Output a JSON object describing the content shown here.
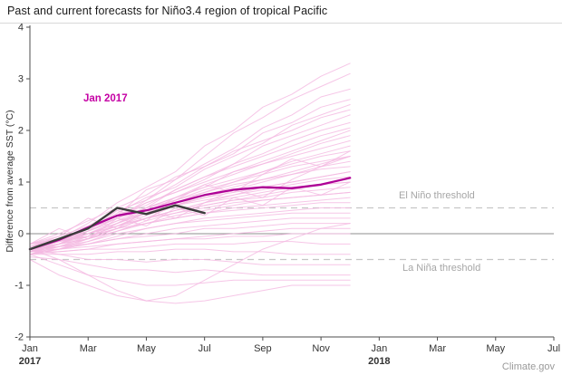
{
  "title": "Past and current forecasts for Niño3.4 region of tropical Pacific",
  "attribution": "Climate.gov",
  "chart_data": {
    "type": "line",
    "title": "Past and current forecasts for Niño3.4 region of tropical Pacific",
    "xlabel": "",
    "ylabel": "Difference from average SST (°C)",
    "ylim": [
      -2,
      4
    ],
    "yticks": [
      -2,
      -1,
      0,
      1,
      2,
      3,
      4
    ],
    "x_domain_months": 18,
    "x_tick_months": [
      0,
      2,
      4,
      6,
      8,
      10,
      12,
      14,
      16,
      18
    ],
    "x_tick_labels": [
      "Jan",
      "Mar",
      "May",
      "Jul",
      "Sep",
      "Nov",
      "Jan",
      "Mar",
      "May",
      "Jul"
    ],
    "x_year_labels": [
      {
        "label": "2017",
        "tick_index": 0
      },
      {
        "label": "2018",
        "tick_index": 6
      }
    ],
    "grid": "off",
    "legend": "none",
    "annotations": {
      "forecast_label": "Jan 2017",
      "elnino": "El Niño threshold",
      "lanina": "La Niña threshold"
    },
    "thresholds": {
      "elnino": 0.5,
      "lanina": -0.5,
      "zero": 0
    },
    "observed": {
      "name": "observed-sst-anomaly",
      "months": [
        0,
        1,
        2,
        3,
        4,
        5,
        6
      ],
      "values": [
        -0.3,
        -0.1,
        0.1,
        0.5,
        0.38,
        0.55,
        0.4
      ]
    },
    "forecast_mean": {
      "name": "jan-2017-forecast-mean",
      "months": [
        0,
        1,
        2,
        3,
        4,
        5,
        6,
        7,
        8,
        9,
        10,
        11
      ],
      "values": [
        -0.3,
        -0.12,
        0.12,
        0.35,
        0.45,
        0.6,
        0.75,
        0.85,
        0.9,
        0.88,
        0.95,
        1.08
      ]
    },
    "ensemble": {
      "months": [
        0,
        1,
        2,
        3,
        4,
        5,
        6,
        7,
        8,
        9,
        10,
        11
      ],
      "members": [
        [
          -0.3,
          -0.1,
          0.2,
          0.6,
          0.9,
          1.2,
          1.7,
          2.0,
          2.45,
          2.7,
          3.05,
          3.3
        ],
        [
          -0.2,
          -0.15,
          0.1,
          0.35,
          0.85,
          1.05,
          1.5,
          1.95,
          2.25,
          2.6,
          2.85,
          3.1
        ],
        [
          -0.3,
          -0.2,
          0.05,
          0.45,
          0.65,
          1.05,
          1.35,
          1.65,
          2.05,
          2.3,
          2.65,
          2.8
        ],
        [
          -0.4,
          -0.2,
          0.1,
          0.3,
          0.65,
          0.95,
          1.3,
          1.55,
          1.95,
          2.15,
          2.45,
          2.6
        ],
        [
          -0.25,
          -0.1,
          0.1,
          0.4,
          0.7,
          0.9,
          1.25,
          1.5,
          1.75,
          2.1,
          2.3,
          2.5
        ],
        [
          -0.2,
          0.0,
          0.25,
          0.5,
          0.75,
          1.1,
          1.3,
          1.6,
          1.8,
          2.0,
          2.25,
          2.4
        ],
        [
          -0.35,
          -0.2,
          0.0,
          0.2,
          0.5,
          0.85,
          1.1,
          1.35,
          1.7,
          1.9,
          2.1,
          2.3
        ],
        [
          -0.3,
          -0.15,
          0.05,
          0.3,
          0.6,
          0.8,
          1.05,
          1.35,
          1.55,
          1.8,
          2.0,
          2.15
        ],
        [
          -0.25,
          -0.1,
          0.1,
          0.35,
          0.55,
          0.85,
          1.1,
          1.3,
          1.5,
          1.7,
          1.9,
          2.05
        ],
        [
          -0.4,
          -0.3,
          -0.1,
          0.2,
          0.4,
          0.7,
          0.9,
          1.2,
          1.4,
          1.6,
          1.8,
          2.0
        ],
        [
          -0.3,
          -0.2,
          0.0,
          0.25,
          0.5,
          0.7,
          0.95,
          1.15,
          1.35,
          1.55,
          1.75,
          1.9
        ],
        [
          -0.2,
          -0.05,
          0.15,
          0.35,
          0.6,
          0.8,
          1.0,
          1.2,
          1.35,
          1.5,
          1.65,
          1.8
        ],
        [
          -0.35,
          -0.25,
          -0.05,
          0.15,
          0.4,
          0.6,
          0.8,
          1.0,
          1.2,
          1.4,
          1.55,
          1.7
        ],
        [
          -0.3,
          -0.1,
          0.05,
          0.3,
          0.5,
          0.7,
          0.9,
          1.05,
          1.2,
          1.35,
          1.5,
          1.6
        ],
        [
          -0.25,
          -0.15,
          0.0,
          0.2,
          0.45,
          0.65,
          0.85,
          1.0,
          1.15,
          1.3,
          1.4,
          1.5
        ],
        [
          -0.4,
          -0.25,
          -0.1,
          0.1,
          0.3,
          0.55,
          0.75,
          0.9,
          1.05,
          1.2,
          1.35,
          1.5
        ],
        [
          -0.3,
          -0.2,
          -0.05,
          0.15,
          0.35,
          0.55,
          0.7,
          0.85,
          1.0,
          1.15,
          1.3,
          1.4
        ],
        [
          -0.2,
          -0.1,
          0.1,
          0.3,
          0.5,
          0.65,
          0.8,
          0.95,
          1.05,
          1.15,
          1.25,
          1.3
        ],
        [
          -0.3,
          -0.15,
          0.0,
          0.2,
          0.4,
          0.55,
          0.7,
          0.8,
          0.9,
          1.0,
          1.1,
          1.2
        ],
        [
          -0.35,
          -0.2,
          -0.1,
          0.1,
          0.3,
          0.45,
          0.6,
          0.75,
          0.9,
          1.0,
          1.1,
          1.2
        ],
        [
          -0.25,
          -0.1,
          0.05,
          0.25,
          0.4,
          0.55,
          0.65,
          0.75,
          0.85,
          0.95,
          1.05,
          1.1
        ],
        [
          -0.3,
          -0.2,
          0.0,
          0.15,
          0.3,
          0.45,
          0.6,
          0.7,
          0.8,
          0.9,
          0.95,
          1.0
        ],
        [
          -0.4,
          -0.3,
          -0.15,
          0.05,
          0.25,
          0.4,
          0.55,
          0.65,
          0.75,
          0.85,
          0.95,
          1.0
        ],
        [
          -0.3,
          -0.15,
          -0.05,
          0.1,
          0.3,
          0.45,
          0.55,
          0.65,
          0.7,
          0.8,
          0.85,
          0.9
        ],
        [
          -0.2,
          -0.1,
          0.0,
          0.15,
          0.3,
          0.4,
          0.5,
          0.6,
          0.65,
          0.7,
          0.75,
          0.8
        ],
        [
          -0.35,
          -0.25,
          -0.1,
          0.05,
          0.2,
          0.35,
          0.45,
          0.55,
          0.65,
          0.7,
          0.75,
          0.8
        ],
        [
          -0.3,
          -0.2,
          -0.1,
          0.05,
          0.2,
          0.3,
          0.4,
          0.5,
          0.55,
          0.6,
          0.65,
          0.7
        ],
        [
          -0.25,
          -0.15,
          -0.05,
          0.1,
          0.2,
          0.3,
          0.4,
          0.45,
          0.5,
          0.55,
          0.6,
          0.6
        ],
        [
          -0.4,
          -0.3,
          -0.2,
          -0.05,
          0.1,
          0.2,
          0.3,
          0.35,
          0.4,
          0.45,
          0.5,
          0.5
        ],
        [
          -0.3,
          -0.25,
          -0.15,
          0.0,
          0.1,
          0.2,
          0.25,
          0.3,
          0.35,
          0.4,
          0.4,
          0.4
        ],
        [
          -0.35,
          -0.3,
          -0.2,
          -0.1,
          0.0,
          0.1,
          0.15,
          0.2,
          0.25,
          0.3,
          0.3,
          0.3
        ],
        [
          -0.3,
          -0.25,
          -0.2,
          -0.1,
          -0.05,
          0.0,
          0.1,
          0.1,
          0.15,
          0.2,
          0.2,
          0.2
        ],
        [
          -0.4,
          -0.35,
          -0.3,
          -0.2,
          -0.15,
          -0.1,
          -0.05,
          0.0,
          0.05,
          0.1,
          0.1,
          0.1
        ],
        [
          -0.3,
          -0.3,
          -0.25,
          -0.2,
          -0.15,
          -0.1,
          -0.1,
          -0.05,
          -0.05,
          0.0,
          0.0,
          0.0
        ],
        [
          -0.35,
          -0.35,
          -0.3,
          -0.3,
          -0.25,
          -0.2,
          -0.2,
          -0.2,
          -0.15,
          -0.15,
          -0.2,
          -0.2
        ],
        [
          -0.4,
          -0.4,
          -0.4,
          -0.35,
          -0.35,
          -0.3,
          -0.3,
          -0.35,
          -0.35,
          -0.4,
          -0.4,
          -0.4
        ],
        [
          -0.3,
          -0.4,
          -0.5,
          -0.5,
          -0.55,
          -0.5,
          -0.5,
          -0.55,
          -0.6,
          -0.6,
          -0.6,
          -0.6
        ],
        [
          -0.45,
          -0.5,
          -0.6,
          -0.7,
          -0.7,
          -0.75,
          -0.7,
          -0.75,
          -0.8,
          -0.8,
          -0.8,
          -0.8
        ],
        [
          -0.4,
          -0.6,
          -0.8,
          -0.9,
          -1.0,
          -1.0,
          -0.95,
          -0.9,
          -0.9,
          -0.9,
          -0.9,
          -0.9
        ],
        [
          -0.5,
          -0.8,
          -1.0,
          -1.2,
          -1.3,
          -1.35,
          -1.3,
          -1.2,
          -1.1,
          -1.0,
          -1.0,
          -1.0
        ],
        [
          -0.3,
          -0.5,
          -0.8,
          -1.1,
          -1.3,
          -1.2,
          -0.9,
          -0.6,
          -0.3,
          -0.1,
          0.1,
          0.2
        ],
        [
          -0.2,
          0.1,
          -0.1,
          0.3,
          0.15,
          0.5,
          0.35,
          0.7,
          0.55,
          0.9,
          0.75,
          1.0
        ],
        [
          -0.25,
          -0.05,
          0.3,
          0.1,
          0.45,
          0.3,
          0.6,
          0.85,
          0.7,
          1.05,
          1.3,
          1.5
        ],
        [
          -0.35,
          -0.15,
          0.15,
          0.45,
          0.25,
          0.65,
          0.95,
          0.8,
          1.15,
          1.45,
          1.3,
          1.6
        ]
      ]
    },
    "colors": {
      "ensemble": "#f4b8e1",
      "forecast": "#ae0096",
      "observed": "#3c3c3c",
      "threshold": "#c6c6c6",
      "zero": "#8f8f8f",
      "axis": "#4d4d4d",
      "tick_text": "#333333",
      "forecast_label": "#c500a4",
      "threshold_label": "#a6a6a6"
    }
  }
}
